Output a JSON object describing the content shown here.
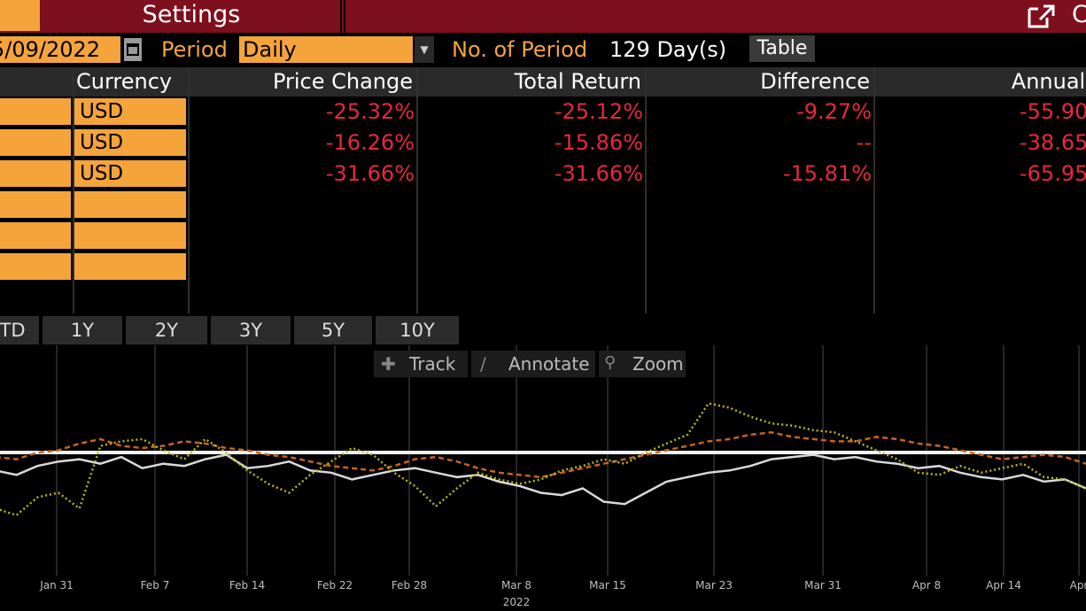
{
  "header": {
    "settings_label": "Settings",
    "cut_label": "C"
  },
  "params": {
    "date_value": "5/09/2022",
    "period_label": "Period",
    "period_value": "Daily",
    "num_periods_label": "No. of Period",
    "num_periods_value": "129 Day(s)",
    "table_button": "Table"
  },
  "table": {
    "headers": [
      "Currency",
      "Price Change",
      "Total Return",
      "Difference",
      "Annual E"
    ],
    "rows": [
      {
        "currency": "USD",
        "price_change": "-25.32%",
        "total_return": "-25.12%",
        "difference": "-9.27%",
        "annual": "-55.90"
      },
      {
        "currency": "USD",
        "price_change": "-16.26%",
        "total_return": "-15.86%",
        "difference": "--",
        "annual": "-38.65"
      },
      {
        "currency": "USD",
        "price_change": "-31.66%",
        "total_return": "-31.66%",
        "difference": "-15.81%",
        "annual": "-65.95"
      },
      {
        "currency": "",
        "price_change": "",
        "total_return": "",
        "difference": "",
        "annual": ""
      },
      {
        "currency": "",
        "price_change": "",
        "total_return": "",
        "difference": "",
        "annual": ""
      },
      {
        "currency": "",
        "price_change": "",
        "total_return": "",
        "difference": "",
        "annual": ""
      }
    ]
  },
  "period_buttons": [
    "TD",
    "1Y",
    "2Y",
    "3Y",
    "5Y",
    "10Y"
  ],
  "chart_toolbar": {
    "track": "Track",
    "annotate": "Annotate",
    "zoom": "Zoom"
  },
  "colors": {
    "accent": "#f4a43a",
    "header_bar": "#7e0f1d",
    "negative": "#e8283b",
    "series_white": "#d9d9d9",
    "series_orange": "#c8641e",
    "series_yellow": "#b8b814"
  },
  "chart_data": {
    "type": "line",
    "x_ticks": [
      "Jan 31",
      "Feb 7",
      "Feb 14",
      "Feb 22",
      "Feb 28",
      "Mar 8",
      "Mar 15",
      "Mar 23",
      "Mar 31",
      "Apr 8",
      "Apr 14",
      "Apr"
    ],
    "x_axis_year": "2022",
    "grid": true,
    "reference_line": 0,
    "series": [
      {
        "color": "white",
        "style": "solid",
        "values": [
          -8,
          -10,
          -6,
          -4,
          -3,
          -5,
          -2,
          -7,
          -5,
          -6,
          -3,
          -1,
          -7,
          -6,
          -4,
          -8,
          -9,
          -12,
          -10,
          -8,
          -7,
          -9,
          -11,
          -10,
          -13,
          -15,
          -18,
          -19,
          -16,
          -22,
          -23,
          -18,
          -13,
          -11,
          -9,
          -8,
          -6,
          -3,
          -2,
          -1,
          -3,
          -2,
          -4,
          -5,
          -7,
          -6,
          -9,
          -11,
          -12,
          -10,
          -13,
          -12,
          -16
        ]
      },
      {
        "color": "orange",
        "style": "dashed",
        "values": [
          -2,
          -3,
          0,
          1,
          4,
          6,
          3,
          2,
          3,
          5,
          4,
          2,
          1,
          -1,
          -2,
          -4,
          -6,
          -7,
          -8,
          -6,
          -3,
          -2,
          -4,
          -7,
          -9,
          -10,
          -11,
          -9,
          -7,
          -5,
          -3,
          -1,
          1,
          3,
          5,
          6,
          8,
          9,
          7,
          6,
          5,
          5,
          7,
          6,
          4,
          3,
          1,
          -1,
          -3,
          -2,
          -1,
          -2,
          -5
        ]
      },
      {
        "color": "yellow",
        "style": "dotted",
        "values": [
          -25,
          -28,
          -20,
          -18,
          -25,
          3,
          5,
          6,
          1,
          -3,
          6,
          0,
          -8,
          -14,
          -18,
          -10,
          -4,
          2,
          -1,
          -9,
          -15,
          -24,
          -16,
          -9,
          -12,
          -14,
          -12,
          -8,
          -6,
          -3,
          -5,
          0,
          4,
          8,
          22,
          20,
          16,
          13,
          12,
          10,
          9,
          5,
          1,
          -3,
          -9,
          -10,
          -6,
          -9,
          -7,
          -5,
          -11,
          -12,
          -16
        ]
      }
    ]
  }
}
